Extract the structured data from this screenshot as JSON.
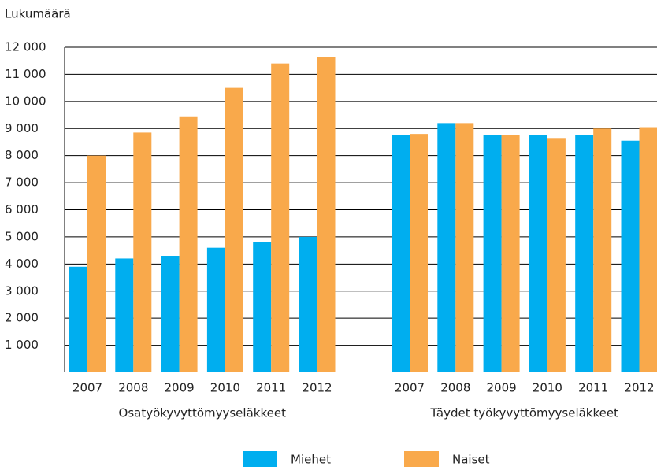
{
  "chart_data": {
    "type": "bar",
    "ylabel": "Lukumäärä",
    "groups": [
      {
        "name": "Osatyökyvyttömyyseläkkeet",
        "categories": [
          "2007",
          "2008",
          "2009",
          "2010",
          "2011",
          "2012"
        ]
      },
      {
        "name": "Täydet työkyvyttömyyseläkkeet",
        "categories": [
          "2007",
          "2008",
          "2009",
          "2010",
          "2011",
          "2012"
        ]
      }
    ],
    "series": [
      {
        "name": "Miehet",
        "color": "#00aeef",
        "values": [
          3900,
          4200,
          4300,
          4600,
          4800,
          5000,
          8750,
          9200,
          8750,
          8750,
          8750,
          8550
        ]
      },
      {
        "name": "Naiset",
        "color": "#f9a94b",
        "values": [
          8000,
          8850,
          9450,
          10500,
          11400,
          11650,
          8800,
          9200,
          8750,
          8650,
          9000,
          9050
        ]
      }
    ],
    "ylim": [
      0,
      12000
    ],
    "yticks": [
      {
        "value": 1000,
        "label": "1 000"
      },
      {
        "value": 2000,
        "label": "2 000"
      },
      {
        "value": 3000,
        "label": "3 000"
      },
      {
        "value": 4000,
        "label": "4 000"
      },
      {
        "value": 5000,
        "label": "5 000"
      },
      {
        "value": 6000,
        "label": "6 000"
      },
      {
        "value": 7000,
        "label": "7 000"
      },
      {
        "value": 8000,
        "label": "8 000"
      },
      {
        "value": 9000,
        "label": "9 000"
      },
      {
        "value": 10000,
        "label": "10 000"
      },
      {
        "value": 11000,
        "label": "11 000"
      },
      {
        "value": 12000,
        "label": "12 000"
      }
    ],
    "grid": true
  }
}
